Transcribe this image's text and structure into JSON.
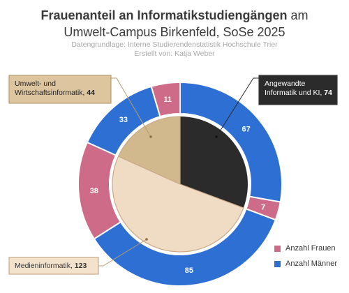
{
  "title": {
    "bold": "Frauenanteil an Informatikstudiengängen",
    "rest": " am",
    "line2": "Umwelt-Campus Birkenfeld, SoSe 2025"
  },
  "subtitle": {
    "source": "Datengrundlage: Interne Studierendenstatistik Hochschule Trier",
    "author": "Erstellt von: Katja Weber"
  },
  "colors": {
    "frauen": "#cd6b89",
    "maenner": "#2d6fd2",
    "inner": [
      "#2b2b2b",
      "#f0dcc4",
      "#d2b98d"
    ],
    "inner_border": [
      "#ffffff",
      "#c9a986",
      "#c9a986"
    ]
  },
  "legend": [
    {
      "label": "Anzahl Frauen",
      "color": "#cd6b89"
    },
    {
      "label": "Anzahl Männer",
      "color": "#2d6fd2"
    }
  ],
  "chart_data": {
    "type": "pie",
    "inner": {
      "categories": [
        "Angewandte Informatik und KI",
        "Medieninformatik",
        "Umwelt- und Wirtschaftsinformatik"
      ],
      "values": [
        74,
        123,
        44
      ]
    },
    "outer": {
      "series": [
        {
          "name": "Anzahl Frauen",
          "values": [
            7,
            38,
            11
          ]
        },
        {
          "name": "Anzahl Männer",
          "values": [
            67,
            85,
            33
          ]
        }
      ],
      "order": [
        {
          "program": 0,
          "series": "Anzahl Männer",
          "value": 67
        },
        {
          "program": 0,
          "series": "Anzahl Frauen",
          "value": 7
        },
        {
          "program": 1,
          "series": "Anzahl Männer",
          "value": 85
        },
        {
          "program": 1,
          "series": "Anzahl Frauen",
          "value": 38
        },
        {
          "program": 2,
          "series": "Anzahl Männer",
          "value": 33
        },
        {
          "program": 2,
          "series": "Anzahl Frauen",
          "value": 11
        }
      ]
    },
    "callouts": [
      {
        "lines": [
          "Angewandte",
          "Informatik und KI, "
        ],
        "value": "74"
      },
      {
        "lines": [
          "Medieninformatik, "
        ],
        "value": "123"
      },
      {
        "lines": [
          "Umwelt- und",
          "Wirtschaftsinformatik, "
        ],
        "value": "44"
      }
    ]
  }
}
